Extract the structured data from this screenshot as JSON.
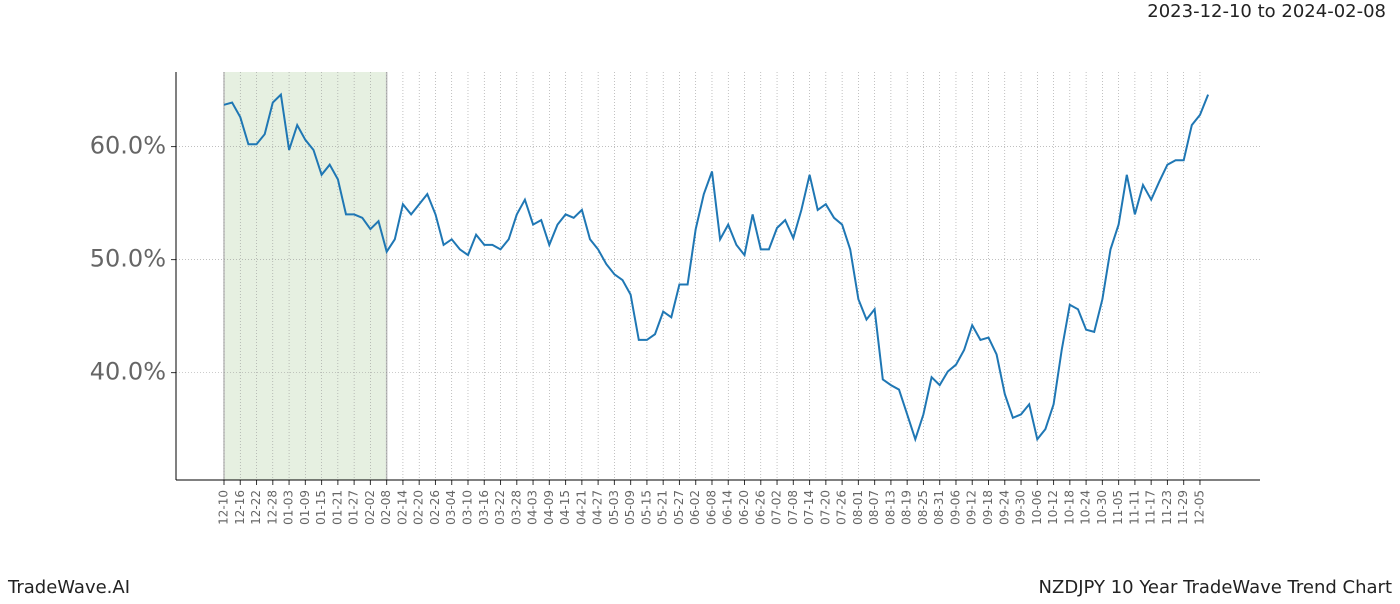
{
  "header": {
    "date_range": "2023-12-10 to 2024-02-08"
  },
  "footer": {
    "brand": "TradeWave.AI",
    "caption": "NZDJPY 10 Year TradeWave Trend Chart"
  },
  "chart_data": {
    "type": "line",
    "categories": [
      "12-10",
      null,
      "12-16",
      null,
      "12-22",
      null,
      "12-28",
      null,
      "01-03",
      null,
      "01-09",
      null,
      "01-15",
      null,
      "01-21",
      null,
      "01-27",
      null,
      "02-02",
      null,
      "02-08",
      null,
      "02-14",
      null,
      "02-20",
      null,
      "02-26",
      null,
      "03-04",
      null,
      "03-10",
      null,
      "03-16",
      null,
      "03-22",
      null,
      "03-28",
      null,
      "04-03",
      null,
      "04-09",
      null,
      "04-15",
      null,
      "04-21",
      null,
      "04-27",
      null,
      "05-03",
      null,
      "05-09",
      null,
      "05-15",
      null,
      "05-21",
      null,
      "05-27",
      null,
      "06-02",
      null,
      "06-08",
      null,
      "06-14",
      null,
      "06-20",
      null,
      "06-26",
      null,
      "07-02",
      null,
      "07-08",
      null,
      "07-14",
      null,
      "07-20",
      null,
      "07-26",
      null,
      "08-01",
      null,
      "08-07",
      null,
      "08-13",
      null,
      "08-19",
      null,
      "08-25",
      null,
      "08-31",
      null,
      "09-06",
      null,
      "09-12",
      null,
      "09-18",
      null,
      "09-24",
      null,
      "09-30",
      null,
      "10-06",
      null,
      "10-12",
      null,
      "10-18",
      null,
      "10-24",
      null,
      "10-30",
      null,
      "11-05",
      null,
      "11-11",
      null,
      "11-17",
      null,
      "11-23",
      null,
      "11-29",
      null,
      "12-05",
      null
    ],
    "values": [
      63.7,
      63.9,
      62.6,
      60.2,
      60.2,
      61.1,
      63.9,
      64.6,
      59.7,
      61.9,
      60.6,
      59.7,
      57.5,
      58.4,
      57.1,
      54.0,
      54.0,
      53.7,
      52.7,
      53.4,
      50.7,
      51.8,
      54.9,
      54.0,
      54.9,
      55.8,
      54.0,
      51.3,
      51.8,
      50.9,
      50.4,
      52.2,
      51.3,
      51.3,
      50.9,
      51.8,
      54.0,
      55.3,
      53.1,
      53.5,
      51.3,
      53.1,
      54.0,
      53.7,
      54.4,
      51.8,
      50.9,
      49.6,
      48.7,
      48.2,
      46.9,
      42.9,
      42.9,
      43.4,
      45.4,
      44.9,
      47.8,
      47.8,
      52.7,
      55.8,
      57.8,
      51.8,
      53.1,
      51.3,
      50.4,
      54.0,
      50.9,
      50.9,
      52.8,
      53.5,
      51.9,
      54.4,
      57.5,
      54.4,
      54.9,
      53.7,
      53.1,
      50.9,
      46.5,
      44.7,
      45.6,
      39.4,
      38.9,
      38.5,
      36.3,
      34.1,
      36.3,
      39.6,
      38.9,
      40.1,
      40.7,
      42.0,
      44.2,
      42.9,
      43.1,
      41.6,
      38.1,
      36.0,
      36.3,
      37.2,
      34.1,
      35.0,
      37.2,
      42.0,
      46.0,
      45.6,
      43.8,
      43.6,
      46.5,
      50.9,
      53.1,
      57.5,
      54.0,
      56.6,
      55.3,
      56.9,
      58.4,
      58.8,
      58.8,
      61.9,
      62.8,
      64.6
    ],
    "color": "#1f77b4",
    "ylim": [
      30.5,
      66.6
    ],
    "yticks": [
      {
        "value": 40,
        "label": "40.0%"
      },
      {
        "value": 50,
        "label": "50.0%"
      },
      {
        "value": 60,
        "label": "60.0%"
      }
    ],
    "grid": true,
    "shaded_categories": [
      "12-10",
      "02-08"
    ],
    "shade_color": "#e6f0e1"
  }
}
